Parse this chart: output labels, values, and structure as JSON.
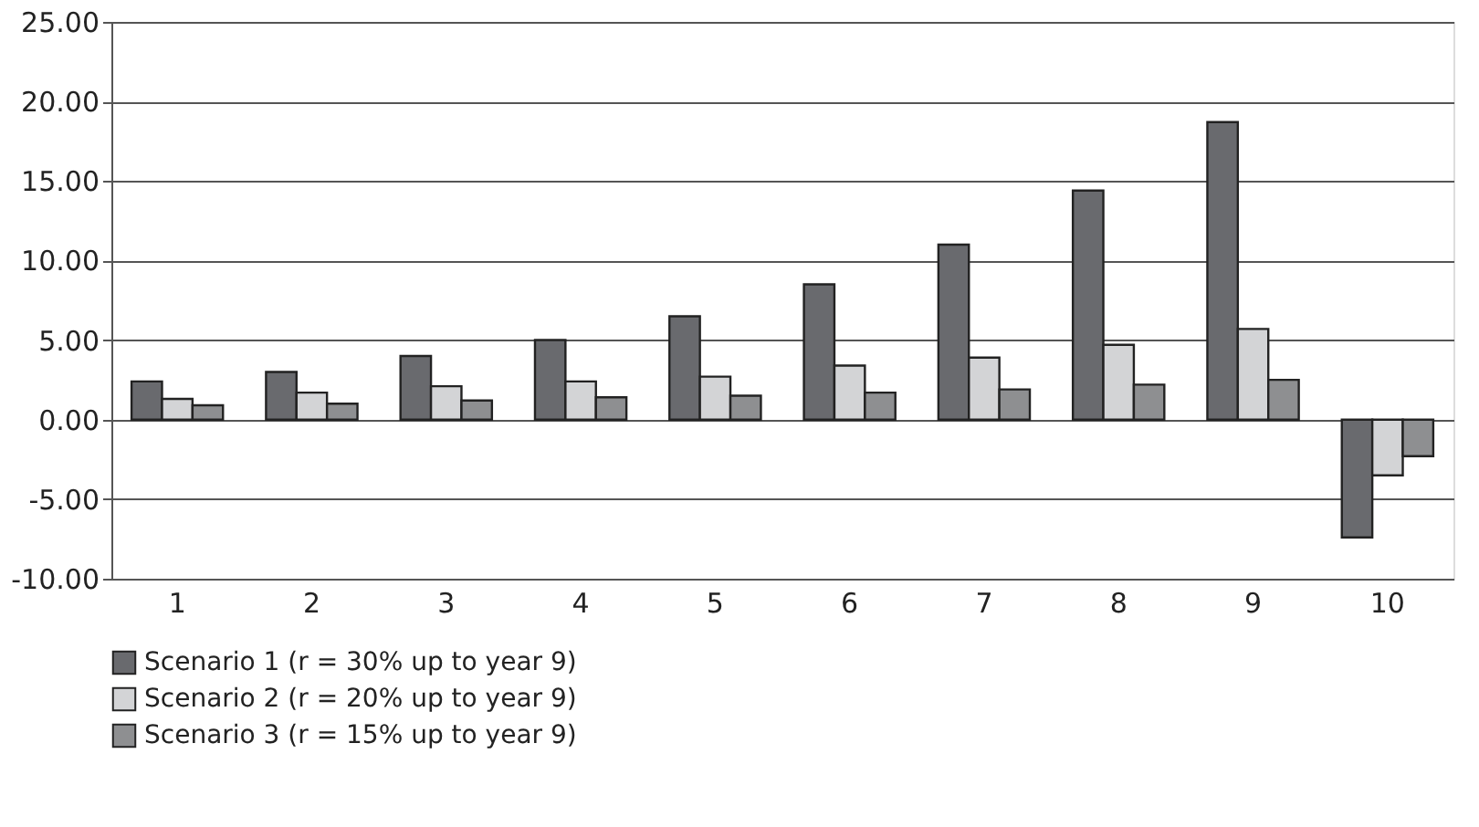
{
  "chart_data": {
    "type": "bar",
    "categories": [
      "1",
      "2",
      "3",
      "4",
      "5",
      "6",
      "7",
      "8",
      "9",
      "10"
    ],
    "series": [
      {
        "name": "Scenario 1 (r = 30% up to year 9)",
        "color": "#696a6e",
        "values": [
          2.4,
          3.0,
          4.0,
          5.0,
          6.5,
          8.5,
          11.0,
          14.4,
          18.7,
          -7.4
        ]
      },
      {
        "name": "Scenario 2 (r = 20% up to year 9)",
        "color": "#d3d4d6",
        "values": [
          1.3,
          1.7,
          2.1,
          2.4,
          2.7,
          3.4,
          3.9,
          4.7,
          5.7,
          -3.5
        ]
      },
      {
        "name": "Scenario 3 (r = 15% up to year 9)",
        "color": "#8e8f91",
        "values": [
          0.9,
          1.0,
          1.2,
          1.4,
          1.5,
          1.7,
          1.9,
          2.2,
          2.5,
          -2.3
        ]
      }
    ],
    "ylim": [
      -10,
      25
    ],
    "yticks": [
      {
        "value": -10,
        "label": "-10.00"
      },
      {
        "value": -5,
        "label": "-5.00"
      },
      {
        "value": 0,
        "label": "0.00"
      },
      {
        "value": 5,
        "label": "5.00"
      },
      {
        "value": 10,
        "label": "10.00"
      },
      {
        "value": 15,
        "label": "15.00"
      },
      {
        "value": 20,
        "label": "20.00"
      },
      {
        "value": 25,
        "label": "25.00"
      }
    ],
    "grid": "y",
    "legend": "bottom"
  }
}
